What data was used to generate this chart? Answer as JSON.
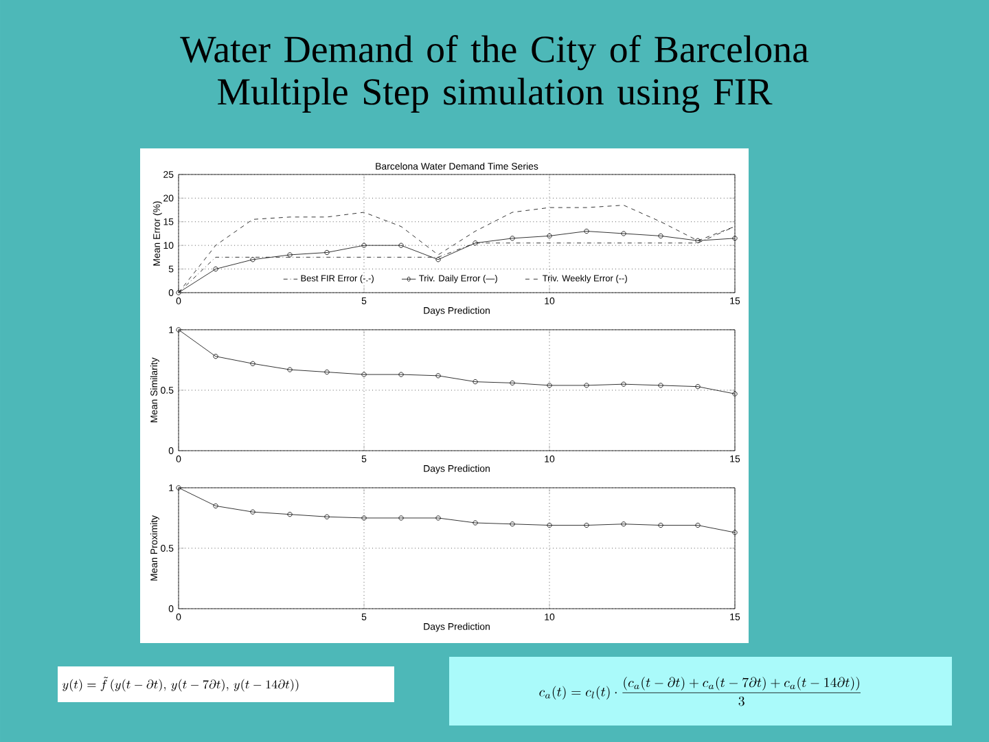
{
  "chart_data": [
    {
      "type": "line",
      "title": "Water Demand of the City of Barcelona Multiple Step simulation using FIR",
      "subtitle": "Barcelona Water Demand Time Series",
      "xlabel": "Days Prediction",
      "ylabel": "Mean Error (%)",
      "xlim": [
        0,
        15
      ],
      "xticks": [
        0,
        5,
        10,
        15
      ],
      "ylim": [
        0,
        25
      ],
      "yticks": [
        0,
        5,
        10,
        15,
        20,
        25
      ],
      "grid": true,
      "legend": "bottom",
      "x": [
        0,
        1,
        2,
        3,
        4,
        5,
        6,
        7,
        8,
        9,
        10,
        11,
        12,
        13,
        14,
        15
      ],
      "series": [
        {
          "name": "Best FIR Error (-.-)",
          "color": "#000000",
          "line_style": "dashdot",
          "marker": "none",
          "values": [
            0,
            7.5,
            7.5,
            7.5,
            7.5,
            7.5,
            7.5,
            7.5,
            10.5,
            10.5,
            10.5,
            10.5,
            10.5,
            10.5,
            10.5,
            14
          ]
        },
        {
          "name": "Triv. Daily Error (—)",
          "color": "#000000",
          "line_style": "solid",
          "marker": "circle",
          "values": [
            0,
            5,
            7,
            8,
            8.5,
            10,
            10,
            7,
            10.5,
            11.5,
            12,
            13,
            12.5,
            12,
            11,
            11.5
          ]
        },
        {
          "name": "Triv. Weekly Error (--)",
          "color": "#000000",
          "line_style": "dashed",
          "marker": "none",
          "values": [
            0,
            10,
            15.5,
            16,
            16,
            17,
            14,
            8,
            13,
            17,
            18,
            18,
            18.5,
            15,
            11,
            14
          ]
        }
      ]
    },
    {
      "type": "line",
      "xlabel": "Days Prediction",
      "ylabel": "Mean Similarity",
      "xlim": [
        0,
        15
      ],
      "xticks": [
        0,
        5,
        10,
        15
      ],
      "ylim": [
        0,
        1
      ],
      "yticks": [
        0,
        0.5,
        1
      ],
      "grid": true,
      "x": [
        0,
        1,
        2,
        3,
        4,
        5,
        6,
        7,
        8,
        9,
        10,
        11,
        12,
        13,
        14,
        15
      ],
      "series": [
        {
          "color": "#000000",
          "line_style": "solid",
          "marker": "circle",
          "values": [
            1,
            0.78,
            0.72,
            0.67,
            0.65,
            0.63,
            0.63,
            0.62,
            0.57,
            0.56,
            0.54,
            0.54,
            0.55,
            0.54,
            0.53,
            0.47
          ]
        }
      ]
    },
    {
      "type": "line",
      "xlabel": "Days Prediction",
      "ylabel": "Mean Proximity",
      "xlim": [
        0,
        15
      ],
      "xticks": [
        0,
        5,
        10,
        15
      ],
      "ylim": [
        0,
        1
      ],
      "yticks": [
        0,
        0.5,
        1
      ],
      "grid": true,
      "x": [
        0,
        1,
        2,
        3,
        4,
        5,
        6,
        7,
        8,
        9,
        10,
        11,
        12,
        13,
        14,
        15
      ],
      "series": [
        {
          "color": "#000000",
          "line_style": "solid",
          "marker": "circle",
          "values": [
            1,
            0.85,
            0.8,
            0.78,
            0.76,
            0.75,
            0.75,
            0.75,
            0.71,
            0.7,
            0.69,
            0.69,
            0.7,
            0.69,
            0.69,
            0.63
          ]
        }
      ],
      "annotations": [
        "y(t)=\\tilde{f}\\,(y(t-\\partial t),\\, y(t-7\\partial t),\\, y(t-14\\partial t))",
        "c_a(t)=c_l(t)\\cdot\\frac{(c_a(t-\\partial t)+c_a(t-7\\partial t)+c_a(t-14\\partial t))}{3}"
      ]
    }
  ]
}
